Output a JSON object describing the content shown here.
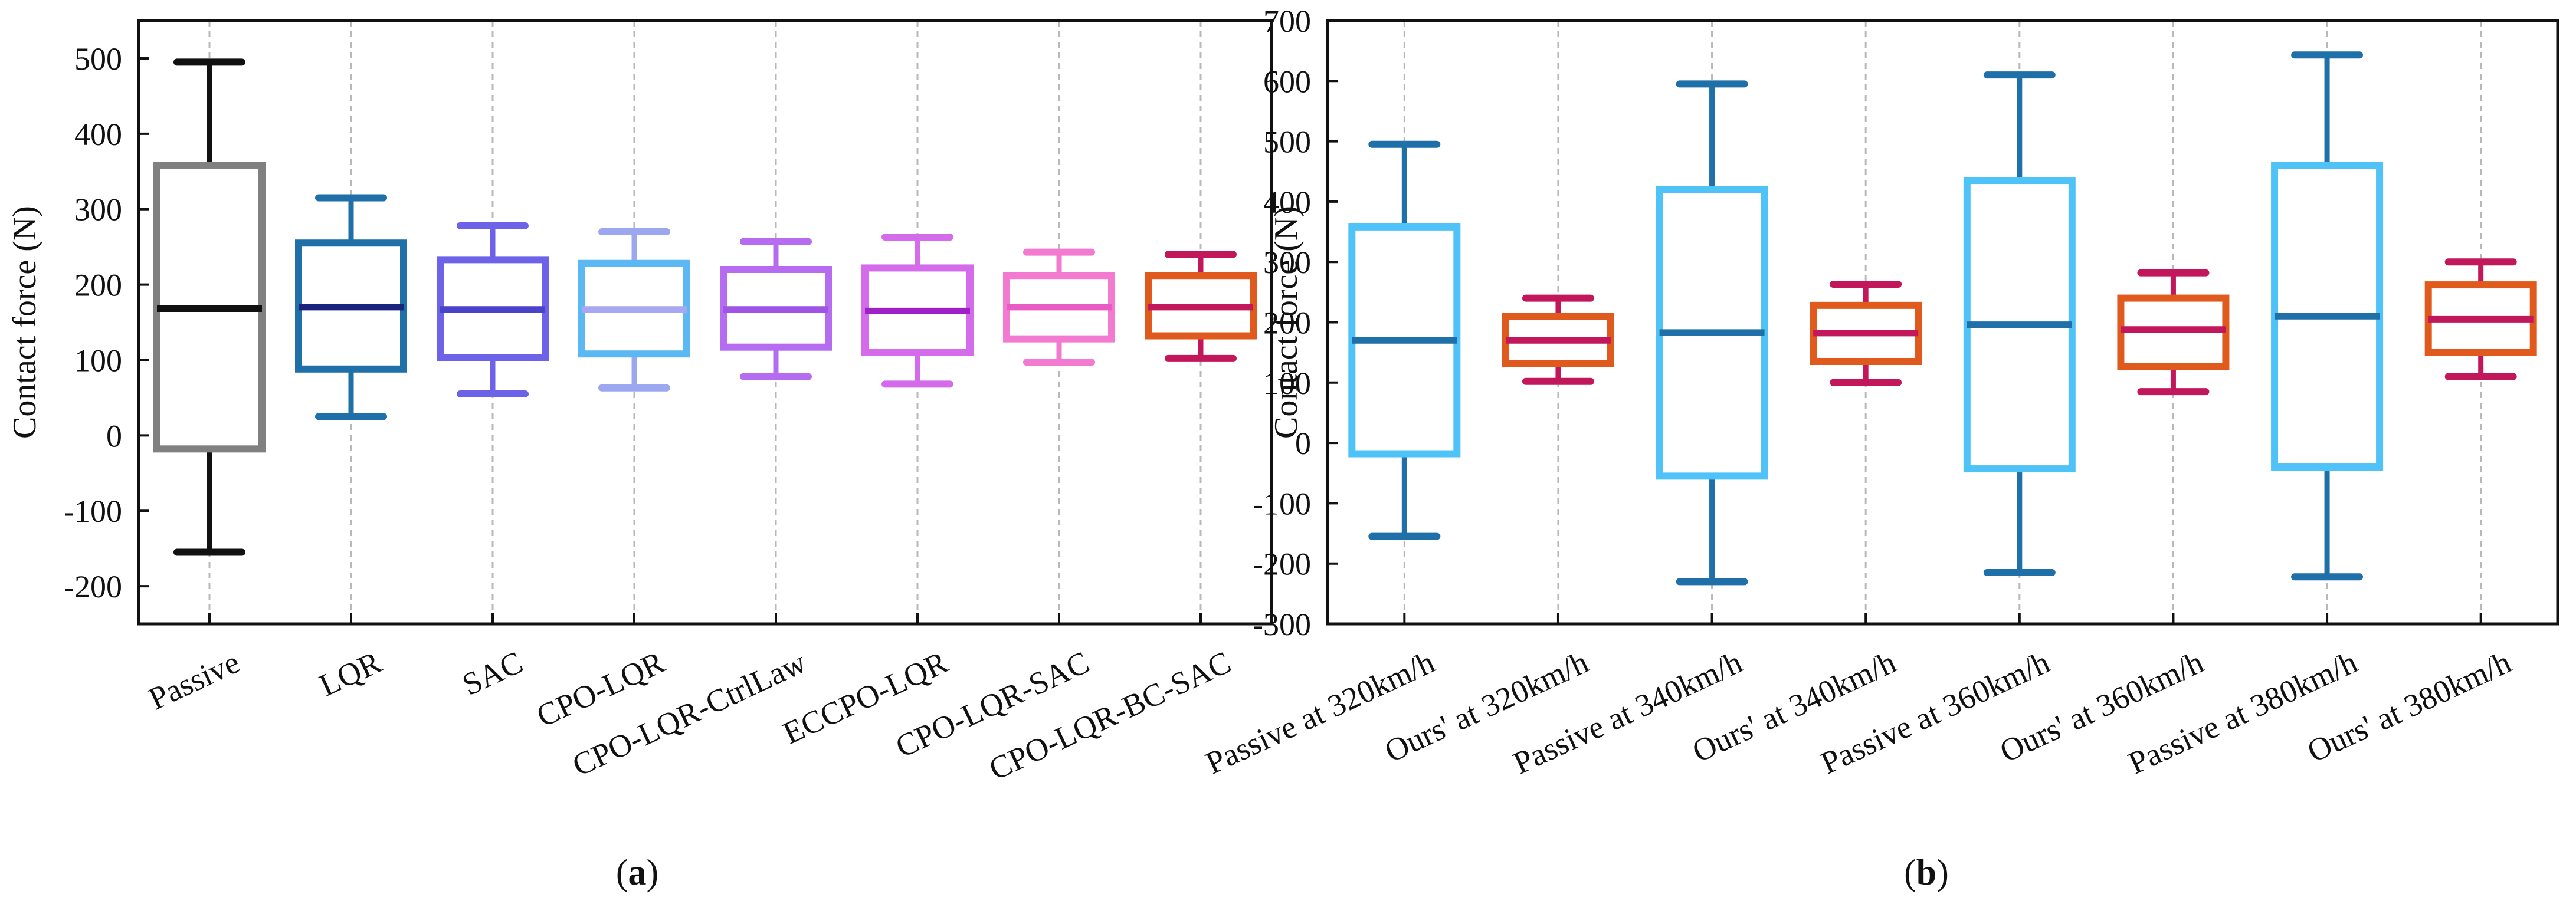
{
  "chart_data": [
    {
      "type": "box",
      "panel_label": "a",
      "ylabel": "Contact force (N)",
      "ylim": [
        -250,
        550
      ],
      "yticks": [
        -200,
        -100,
        0,
        100,
        200,
        300,
        400,
        500
      ],
      "grid": "vertical dashed",
      "categories": [
        "Passive",
        "LQR",
        "SAC",
        "CPO-LQR",
        "CPO-LQR-CtrlLaw",
        "ECCPO-LQR",
        "CPO-LQR-SAC",
        "CPO-LQR-BC-SAC"
      ],
      "boxes": [
        {
          "min": -155,
          "q1": -18,
          "median": 168,
          "q3": 358,
          "max": 495,
          "color": "#808080",
          "whisker_color": "#111111",
          "median_color": "#111111"
        },
        {
          "min": 25,
          "q1": 88,
          "median": 170,
          "q3": 255,
          "max": 315,
          "color": "#1F6FA8",
          "whisker_color": "#1F6FA8",
          "median_color": "#1A237E"
        },
        {
          "min": 55,
          "q1": 103,
          "median": 167,
          "q3": 233,
          "max": 278,
          "color": "#6C63E8",
          "whisker_color": "#6C63E8",
          "median_color": "#4A42C8"
        },
        {
          "min": 63,
          "q1": 108,
          "median": 167,
          "q3": 228,
          "max": 270,
          "color": "#5BB8F2",
          "whisker_color": "#9DA7F0",
          "median_color": "#A8A8F2"
        },
        {
          "min": 78,
          "q1": 117,
          "median": 167,
          "q3": 220,
          "max": 257,
          "color": "#B56CF0",
          "whisker_color": "#B56CF0",
          "median_color": "#9E55E6"
        },
        {
          "min": 68,
          "q1": 110,
          "median": 165,
          "q3": 222,
          "max": 263,
          "color": "#D46BEA",
          "whisker_color": "#D46BEA",
          "median_color": "#A020C8"
        },
        {
          "min": 97,
          "q1": 128,
          "median": 170,
          "q3": 212,
          "max": 243,
          "color": "#F27AD0",
          "whisker_color": "#F27AD0",
          "median_color": "#E85BC4"
        },
        {
          "min": 102,
          "q1": 132,
          "median": 170,
          "q3": 212,
          "max": 240,
          "color": "#E05A1E",
          "whisker_color": "#C2185B",
          "median_color": "#C2185B"
        }
      ]
    },
    {
      "type": "box",
      "panel_label": "b",
      "ylabel": "Contact force (N)",
      "ylim": [
        -300,
        700
      ],
      "yticks": [
        -300,
        -200,
        -100,
        0,
        100,
        200,
        300,
        400,
        500,
        600,
        700
      ],
      "grid": "vertical dashed",
      "categories": [
        "Passive at 320km/h",
        "Ours' at 320km/h",
        "Passive at 340km/h",
        "Ours' at 340km/h",
        "Passive at 360km/h",
        "Ours' at 360km/h",
        "Passive at 380km/h",
        "Ours' at 380km/h"
      ],
      "boxes": [
        {
          "min": -155,
          "q1": -18,
          "median": 170,
          "q3": 358,
          "max": 495,
          "color": "#4FC3F7",
          "whisker_color": "#1F6FA8",
          "median_color": "#1F6FA8"
        },
        {
          "min": 102,
          "q1": 132,
          "median": 170,
          "q3": 210,
          "max": 240,
          "color": "#E05A1E",
          "whisker_color": "#C2185B",
          "median_color": "#C2185B"
        },
        {
          "min": -230,
          "q1": -55,
          "median": 183,
          "q3": 420,
          "max": 595,
          "color": "#4FC3F7",
          "whisker_color": "#1F6FA8",
          "median_color": "#1F6FA8"
        },
        {
          "min": 100,
          "q1": 135,
          "median": 182,
          "q3": 228,
          "max": 263,
          "color": "#E05A1E",
          "whisker_color": "#C2185B",
          "median_color": "#C2185B"
        },
        {
          "min": -215,
          "q1": -43,
          "median": 196,
          "q3": 435,
          "max": 610,
          "color": "#4FC3F7",
          "whisker_color": "#1F6FA8",
          "median_color": "#1F6FA8"
        },
        {
          "min": 85,
          "q1": 127,
          "median": 188,
          "q3": 240,
          "max": 282,
          "color": "#E05A1E",
          "whisker_color": "#C2185B",
          "median_color": "#C2185B"
        },
        {
          "min": -222,
          "q1": -40,
          "median": 210,
          "q3": 460,
          "max": 643,
          "color": "#4FC3F7",
          "whisker_color": "#1F6FA8",
          "median_color": "#1F6FA8"
        },
        {
          "min": 110,
          "q1": 150,
          "median": 205,
          "q3": 262,
          "max": 300,
          "color": "#E05A1E",
          "whisker_color": "#C2185B",
          "median_color": "#C2185B"
        }
      ]
    }
  ],
  "captions": [
    "a",
    "b"
  ]
}
